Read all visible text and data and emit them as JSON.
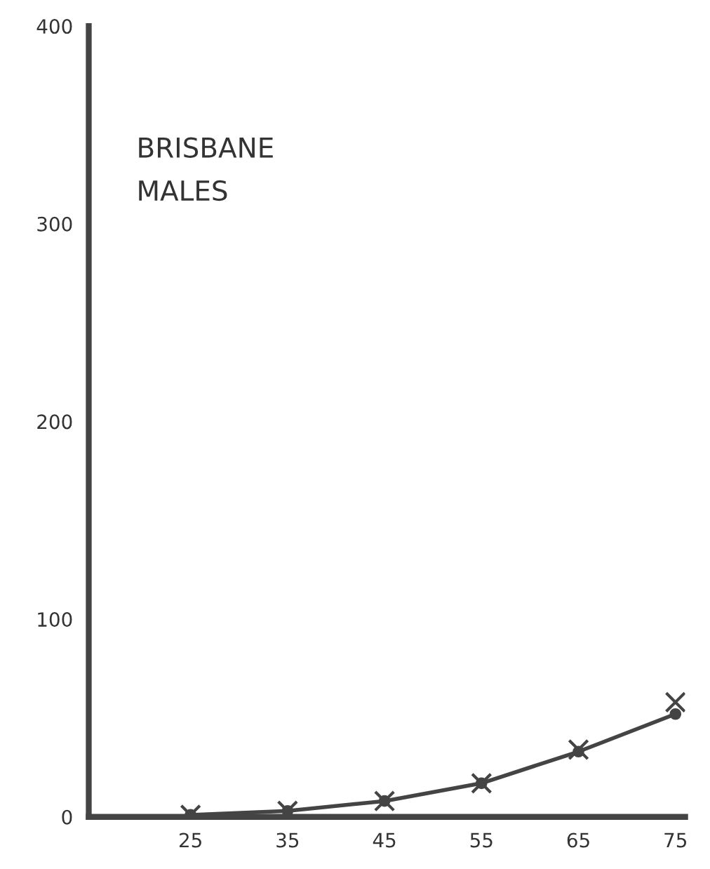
{
  "chart_data": {
    "type": "line",
    "title": "BRISBANE\nMALES",
    "x": [
      25,
      35,
      45,
      55,
      65,
      75
    ],
    "series": [
      {
        "color": "#444444",
        "marker": "circle",
        "values": [
          1,
          3,
          8,
          17,
          33,
          52
        ]
      },
      {
        "type": "scatter",
        "color": "#444444",
        "marker": "cross",
        "values": [
          1,
          3,
          8,
          17,
          34,
          58
        ]
      }
    ],
    "xlim": [
      14.5,
      76
    ],
    "xticks": [
      25,
      35,
      45,
      55,
      65,
      75
    ],
    "ylim": [
      0,
      400
    ],
    "yticks": [
      0,
      100,
      200,
      300,
      400
    ],
    "grid": false,
    "legend": false
  }
}
